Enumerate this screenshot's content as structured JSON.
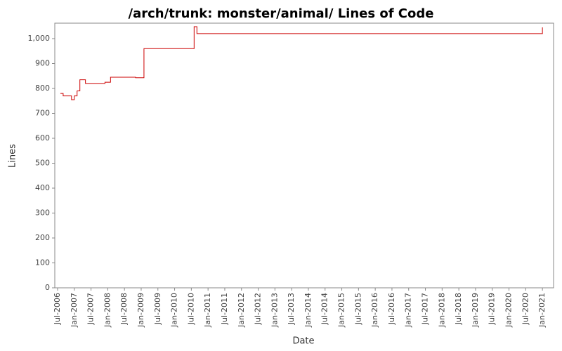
{
  "chart_data": {
    "type": "line",
    "step": true,
    "title": "/arch/trunk: monster/animal/ Lines of Code",
    "x_label": "Date",
    "y_label": "Lines",
    "color": "#cc0000",
    "x": [
      "2006-08",
      "2006-09",
      "2006-12",
      "2007-01",
      "2007-02",
      "2007-03",
      "2007-05",
      "2007-12",
      "2008-02",
      "2008-11",
      "2009-02",
      "2010-08",
      "2010-09",
      "2021-01"
    ],
    "values": [
      780,
      770,
      755,
      770,
      790,
      835,
      820,
      825,
      845,
      843,
      960,
      1048,
      1020,
      1045
    ],
    "xlim": [
      "2006-06",
      "2021-05"
    ],
    "xticks": [
      {
        "value": "2006-07",
        "label": "Jul-2006"
      },
      {
        "value": "2007-01",
        "label": "Jan-2007"
      },
      {
        "value": "2007-07",
        "label": "Jul-2007"
      },
      {
        "value": "2008-01",
        "label": "Jan-2008"
      },
      {
        "value": "2008-07",
        "label": "Jul-2008"
      },
      {
        "value": "2009-01",
        "label": "Jan-2009"
      },
      {
        "value": "2009-07",
        "label": "Jul-2009"
      },
      {
        "value": "2010-01",
        "label": "Jan-2010"
      },
      {
        "value": "2010-07",
        "label": "Jul-2010"
      },
      {
        "value": "2011-01",
        "label": "Jan-2011"
      },
      {
        "value": "2011-07",
        "label": "Jul-2011"
      },
      {
        "value": "2012-01",
        "label": "Jan-2012"
      },
      {
        "value": "2012-07",
        "label": "Jul-2012"
      },
      {
        "value": "2013-01",
        "label": "Jan-2013"
      },
      {
        "value": "2013-07",
        "label": "Jul-2013"
      },
      {
        "value": "2014-01",
        "label": "Jan-2014"
      },
      {
        "value": "2014-07",
        "label": "Jul-2014"
      },
      {
        "value": "2015-01",
        "label": "Jan-2015"
      },
      {
        "value": "2015-07",
        "label": "Jul-2015"
      },
      {
        "value": "2016-01",
        "label": "Jan-2016"
      },
      {
        "value": "2016-07",
        "label": "Jul-2016"
      },
      {
        "value": "2017-01",
        "label": "Jan-2017"
      },
      {
        "value": "2017-07",
        "label": "Jul-2017"
      },
      {
        "value": "2018-01",
        "label": "Jan-2018"
      },
      {
        "value": "2018-07",
        "label": "Jul-2018"
      },
      {
        "value": "2019-01",
        "label": "Jan-2019"
      },
      {
        "value": "2019-07",
        "label": "Jul-2019"
      },
      {
        "value": "2020-01",
        "label": "Jan-2020"
      },
      {
        "value": "2020-07",
        "label": "Jul-2020"
      },
      {
        "value": "2021-01",
        "label": "Jan-2021"
      }
    ],
    "ylim": [
      0,
      1062
    ],
    "yticks": [
      0,
      100,
      200,
      300,
      400,
      500,
      600,
      700,
      800,
      900,
      {
        "value": 1000,
        "label": "1,000"
      }
    ],
    "grid": false
  }
}
